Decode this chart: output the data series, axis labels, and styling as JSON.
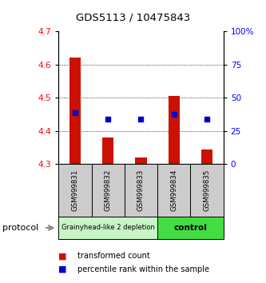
{
  "title": "GDS5113 / 10475843",
  "samples": [
    "GSM999831",
    "GSM999832",
    "GSM999833",
    "GSM999834",
    "GSM999835"
  ],
  "bar_bottoms": [
    4.3,
    4.3,
    4.3,
    4.3,
    4.3
  ],
  "bar_tops": [
    4.62,
    4.38,
    4.32,
    4.505,
    4.345
  ],
  "percentile_values": [
    4.455,
    4.435,
    4.435,
    4.45,
    4.435
  ],
  "ylim_left": [
    4.3,
    4.7
  ],
  "ylim_right": [
    0,
    100
  ],
  "yticks_left": [
    4.3,
    4.4,
    4.5,
    4.6,
    4.7
  ],
  "yticks_right": [
    0,
    25,
    50,
    75,
    100
  ],
  "bar_color": "#cc1100",
  "dot_color": "#0000cc",
  "group1_samples": [
    0,
    1,
    2
  ],
  "group2_samples": [
    3,
    4
  ],
  "group1_label": "Grainyhead-like 2 depletion",
  "group2_label": "control",
  "group1_color": "#c8f5c8",
  "group2_color": "#44dd44",
  "protocol_label": "protocol",
  "legend_bar_label": "transformed count",
  "legend_dot_label": "percentile rank within the sample",
  "xlabel_bg": "#cccccc",
  "grid_lines": [
    4.4,
    4.5,
    4.6
  ]
}
